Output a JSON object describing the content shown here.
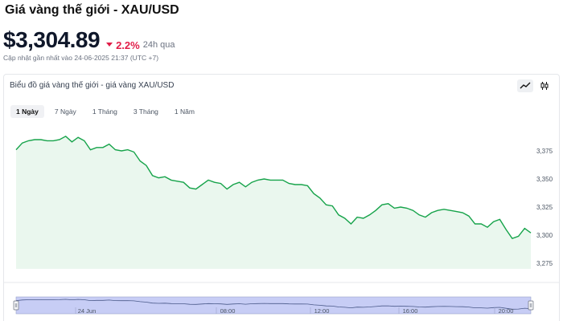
{
  "header": {
    "title": "Giá vàng thế giới - XAU/USD",
    "price": "$3,304.89",
    "change": "2.2%",
    "period": "24h qua",
    "updated": "Cập nhật gần nhất vào 24-06-2025 21:37 (UTC +7)"
  },
  "card": {
    "title": "Biểu đồ giá vàng thế giới - giá vàng XAU/USD",
    "icons": [
      "line-chart-icon",
      "candlestick-icon"
    ]
  },
  "tabs": [
    {
      "label": "1 Ngày",
      "active": true
    },
    {
      "label": "7 Ngày",
      "active": false
    },
    {
      "label": "1 Tháng",
      "active": false
    },
    {
      "label": "3 Tháng",
      "active": false
    },
    {
      "label": "1 Năm",
      "active": false
    }
  ],
  "colors": {
    "line": "#16a34a",
    "fill": "#eaf7ee",
    "negative": "#e11d48",
    "navigator_fill": "#c7cdf5"
  },
  "chart_data": {
    "type": "area",
    "ylim": [
      3270,
      3395
    ],
    "yticks": [
      3275,
      3300,
      3325,
      3350,
      3375
    ],
    "ytick_labels": [
      "3,275",
      "3,300",
      "3,325",
      "3,350",
      "3,375"
    ],
    "series": [
      {
        "values": [
          3376,
          3382,
          3384,
          3385,
          3385,
          3384,
          3384,
          3385,
          3388,
          3383,
          3387,
          3384,
          3376,
          3378,
          3378,
          3381,
          3376,
          3375,
          3376,
          3374,
          3366,
          3362,
          3353,
          3351,
          3352,
          3349,
          3348,
          3347,
          3342,
          3341,
          3345,
          3349,
          3347,
          3346,
          3341,
          3345,
          3347,
          3343,
          3347,
          3349,
          3350,
          3349,
          3349,
          3349,
          3346,
          3345,
          3345,
          3344,
          3337,
          3333,
          3327,
          3326,
          3318,
          3315,
          3310,
          3316,
          3315,
          3318,
          3322,
          3327,
          3328,
          3324,
          3325,
          3324,
          3322,
          3318,
          3316,
          3320,
          3322,
          3323,
          3322,
          3321,
          3320,
          3317,
          3310,
          3310,
          3307,
          3312,
          3314,
          3305,
          3297,
          3299,
          3306,
          3302
        ]
      }
    ],
    "navigator": {
      "x_labels": [
        "24 Jun",
        "08:00",
        "12:00",
        "16:00",
        "20:00"
      ]
    }
  }
}
